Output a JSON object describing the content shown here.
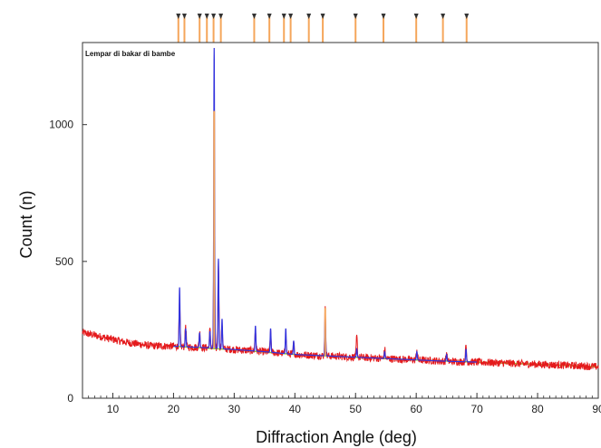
{
  "chart_data": {
    "type": "line",
    "title": "",
    "inset_label": "Lempar di bakar di bambe",
    "xlabel": "Diffraction Angle (deg)",
    "ylabel": "Count (n)",
    "xlim": [
      5,
      90
    ],
    "ylim": [
      0,
      1300
    ],
    "x_ticks": [
      10,
      20,
      30,
      40,
      50,
      60,
      70,
      80,
      90
    ],
    "y_ticks": [
      0,
      500,
      1000
    ],
    "grid": false,
    "colors": {
      "observed": "#e41a1c",
      "calculated": "#3333dd",
      "background_fit": "#9acd32",
      "reference": "#f5a65b",
      "reference_marker": "#333333"
    },
    "series": [
      {
        "role": "observed",
        "noise": 14,
        "baseline": [
          [
            5,
            240
          ],
          [
            8,
            225
          ],
          [
            12,
            205
          ],
          [
            16,
            192
          ],
          [
            20,
            190
          ],
          [
            25,
            185
          ],
          [
            30,
            178
          ],
          [
            35,
            170
          ],
          [
            40,
            160
          ],
          [
            45,
            155
          ],
          [
            50,
            150
          ],
          [
            55,
            145
          ],
          [
            60,
            140
          ],
          [
            65,
            135
          ],
          [
            70,
            132
          ],
          [
            75,
            128
          ],
          [
            80,
            124
          ],
          [
            85,
            120
          ],
          [
            90,
            115
          ]
        ],
        "peaks": [
          [
            21.0,
            350
          ],
          [
            22.0,
            270
          ],
          [
            24.3,
            245
          ],
          [
            26.0,
            250
          ],
          [
            26.7,
            680
          ],
          [
            27.4,
            500
          ],
          [
            28.0,
            275
          ],
          [
            33.5,
            250
          ],
          [
            36.0,
            240
          ],
          [
            38.5,
            235
          ],
          [
            39.8,
            200
          ],
          [
            45.0,
            325
          ],
          [
            50.2,
            225
          ],
          [
            54.8,
            180
          ],
          [
            60.1,
            180
          ],
          [
            65.0,
            165
          ],
          [
            68.2,
            190
          ]
        ]
      },
      {
        "role": "calculated",
        "peaks": [
          [
            21.0,
            405
          ],
          [
            22.0,
            255
          ],
          [
            24.3,
            240
          ],
          [
            26.0,
            245
          ],
          [
            26.7,
            1280
          ],
          [
            27.4,
            510
          ],
          [
            28.0,
            290
          ],
          [
            33.5,
            265
          ],
          [
            36.0,
            255
          ],
          [
            38.5,
            255
          ],
          [
            39.8,
            210
          ],
          [
            45.0,
            300
          ],
          [
            50.2,
            180
          ],
          [
            54.8,
            170
          ],
          [
            60.1,
            170
          ],
          [
            65.0,
            160
          ],
          [
            68.2,
            180
          ]
        ]
      },
      {
        "role": "background_fit",
        "points": [
          [
            20,
            190
          ],
          [
            30,
            177
          ],
          [
            40,
            160
          ],
          [
            50,
            150
          ],
          [
            60,
            140
          ],
          [
            70,
            132
          ],
          [
            80,
            124
          ],
          [
            90,
            115
          ]
        ]
      }
    ],
    "reference_peaks": [
      20.8,
      21.8,
      24.3,
      25.5,
      26.6,
      27.8,
      33.3,
      35.8,
      38.2,
      39.3,
      42.3,
      44.6,
      50.0,
      54.6,
      60.0,
      64.4,
      68.3
    ],
    "reference_bars": [
      [
        26.7,
        1050
      ],
      [
        45.0,
        330
      ]
    ]
  }
}
